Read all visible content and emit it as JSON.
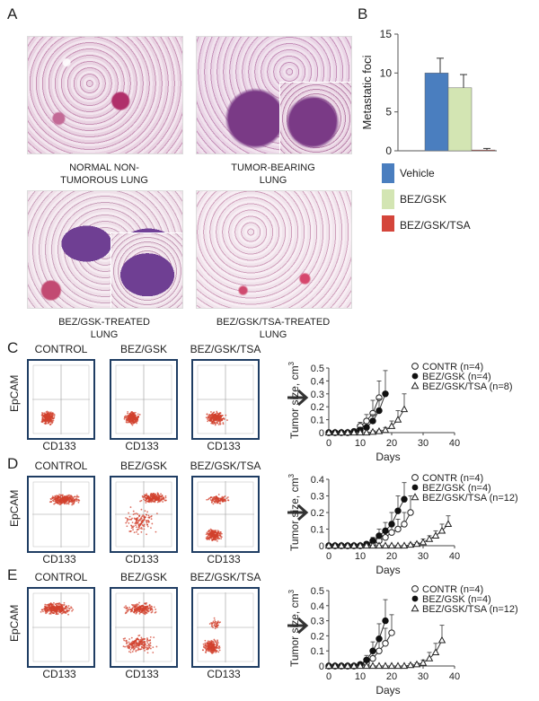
{
  "panelA": {
    "letter": "A",
    "captions": {
      "normal_l1": "NORMAL NON-",
      "normal_l2": "TUMOROUS LUNG",
      "tumor_l1": "TUMOR-BEARING",
      "tumor_l2": "LUNG",
      "gsk_l1": "BEZ/GSK-TREATED",
      "gsk_l2": "LUNG",
      "tsa_l1": "BEZ/GSK/TSA-TREATED",
      "tsa_l2": "LUNG"
    }
  },
  "panelB": {
    "letter": "B"
  },
  "panelC": {
    "letter": "C",
    "flow_titles": [
      "CONTROL",
      "BEZ/GSK",
      "BEZ/GSK/TSA"
    ],
    "flow_ylabel": "EpCAM",
    "flow_xlabel": "CD133"
  },
  "panelD": {
    "letter": "D",
    "flow_titles": [
      "CONTROL",
      "BEZ/GSK",
      "BEZ/GSK/TSA"
    ],
    "flow_ylabel": "EpCAM",
    "flow_xlabel": "CD133"
  },
  "panelE": {
    "letter": "E",
    "flow_titles": [
      "CONTROL",
      "BEZ/GSK",
      "BEZ/GSK/TSA"
    ],
    "flow_ylabel": "EpCAM",
    "flow_xlabel": "CD133"
  },
  "colors": {
    "vehicle": "#4a7ebf",
    "bez_gsk": "#d3e5b3",
    "bez_gsk_tsa": "#d4453b",
    "flow_border": "#1f3d63",
    "flow_dots": "#d2412e"
  },
  "chart_data": [
    {
      "id": "B",
      "type": "bar",
      "categories": [
        "Vehicle",
        "BEZ/GSK",
        "BEZ/GSK/TSA"
      ],
      "values": [
        10,
        8.1,
        0.1
      ],
      "errors": [
        1.9,
        1.7,
        0.2
      ],
      "ylabel": "Metastatic foci",
      "yticks": [
        0,
        5,
        10,
        15
      ],
      "ylim": [
        0,
        15
      ],
      "legend": [
        "Vehicle",
        "BEZ/GSK",
        "BEZ/GSK/TSA"
      ]
    },
    {
      "id": "C",
      "type": "line",
      "xlabel": "Days",
      "ylabel_main": "Tumor size, cm",
      "ylabel_sup": "3",
      "xlim": [
        0,
        40
      ],
      "xticks": [
        0,
        10,
        20,
        30,
        40
      ],
      "ylim": [
        0,
        0.5
      ],
      "yticks": [
        "0",
        "0.1",
        "0.2",
        "0.3",
        "0.4",
        "0.5"
      ],
      "series": [
        {
          "name": "CONTR (n=4)",
          "marker": "open-circle",
          "x": [
            0,
            2,
            4,
            6,
            8,
            10,
            12,
            14,
            16
          ],
          "y": [
            0,
            0,
            0,
            0,
            0.01,
            0.05,
            0.09,
            0.15,
            0.27
          ],
          "err": [
            0,
            0,
            0,
            0,
            0.01,
            0.03,
            0.05,
            0.1,
            0.13
          ]
        },
        {
          "name": "BEZ/GSK (n=4)",
          "marker": "filled-circle",
          "x": [
            0,
            2,
            4,
            6,
            8,
            10,
            12,
            14,
            16,
            18
          ],
          "y": [
            0,
            0,
            0,
            0,
            0.005,
            0.02,
            0.04,
            0.09,
            0.17,
            0.3
          ],
          "err": [
            0,
            0,
            0,
            0,
            0.01,
            0.02,
            0.03,
            0.05,
            0.09,
            0.18
          ]
        },
        {
          "name": "BEZ/GSK/TSA (n=8)",
          "marker": "open-triangle",
          "x": [
            0,
            2,
            4,
            6,
            8,
            10,
            12,
            14,
            16,
            18,
            20,
            22,
            24
          ],
          "y": [
            0,
            0,
            0,
            0,
            0,
            0,
            0,
            0.005,
            0.01,
            0.02,
            0.05,
            0.1,
            0.18
          ],
          "err": [
            0,
            0,
            0,
            0,
            0,
            0,
            0,
            0.01,
            0.01,
            0.02,
            0.04,
            0.07,
            0.12
          ]
        }
      ]
    },
    {
      "id": "D",
      "type": "line",
      "xlabel": "Days",
      "ylabel_main": "Tumor size, cm",
      "ylabel_sup": "3",
      "xlim": [
        0,
        40
      ],
      "xticks": [
        0,
        10,
        20,
        30,
        40
      ],
      "ylim": [
        0,
        0.4
      ],
      "yticks": [
        "0",
        "0.1",
        "0.2",
        "0.3",
        "0.4"
      ],
      "series": [
        {
          "name": "CONTR (n=4)",
          "marker": "open-circle",
          "x": [
            0,
            2,
            4,
            6,
            8,
            10,
            12,
            14,
            16,
            18,
            20,
            22,
            24,
            26
          ],
          "y": [
            0,
            0,
            0,
            0,
            0,
            0,
            0.005,
            0.01,
            0.03,
            0.05,
            0.08,
            0.1,
            0.13,
            0.2
          ],
          "err": [
            0,
            0,
            0,
            0,
            0,
            0,
            0.01,
            0.01,
            0.02,
            0.03,
            0.05,
            0.06,
            0.07,
            0.1
          ]
        },
        {
          "name": "BEZ/GSK (n=4)",
          "marker": "filled-circle",
          "x": [
            0,
            2,
            4,
            6,
            8,
            10,
            12,
            14,
            16,
            18,
            20,
            22,
            24
          ],
          "y": [
            0,
            0,
            0,
            0,
            0,
            0,
            0.01,
            0.03,
            0.06,
            0.09,
            0.13,
            0.21,
            0.28
          ],
          "err": [
            0,
            0,
            0,
            0,
            0,
            0,
            0.01,
            0.02,
            0.04,
            0.05,
            0.07,
            0.09,
            0.1
          ]
        },
        {
          "name": "BEZ/GSK/TSA (n=12)",
          "marker": "open-triangle",
          "x": [
            0,
            2,
            4,
            6,
            8,
            10,
            12,
            14,
            16,
            18,
            20,
            22,
            24,
            26,
            28,
            30,
            32,
            34,
            36,
            38
          ],
          "y": [
            0,
            0,
            0,
            0,
            0,
            0,
            0,
            0,
            0,
            0,
            0,
            0,
            0,
            0.005,
            0.01,
            0.02,
            0.04,
            0.06,
            0.09,
            0.13
          ],
          "err": [
            0,
            0,
            0,
            0,
            0,
            0,
            0,
            0,
            0,
            0,
            0,
            0,
            0,
            0.01,
            0.01,
            0.02,
            0.02,
            0.03,
            0.04,
            0.05
          ]
        }
      ]
    },
    {
      "id": "E",
      "type": "line",
      "xlabel": "Days",
      "ylabel_main": "Tumor size, cm",
      "ylabel_sup": "3",
      "xlim": [
        0,
        40
      ],
      "xticks": [
        0,
        10,
        20,
        30,
        40
      ],
      "ylim": [
        0,
        0.5
      ],
      "yticks": [
        "0",
        "0.1",
        "0.2",
        "0.3",
        "0.4",
        "0.5"
      ],
      "series": [
        {
          "name": "CONTR (n=4)",
          "marker": "open-circle",
          "x": [
            0,
            2,
            4,
            6,
            8,
            10,
            12,
            14,
            16,
            18,
            20
          ],
          "y": [
            0,
            0,
            0,
            0,
            0,
            0.01,
            0.02,
            0.05,
            0.1,
            0.15,
            0.22
          ],
          "err": [
            0,
            0,
            0,
            0,
            0,
            0.01,
            0.02,
            0.04,
            0.07,
            0.1,
            0.12
          ]
        },
        {
          "name": "BEZ/GSK (n=4)",
          "marker": "filled-circle",
          "x": [
            0,
            2,
            4,
            6,
            8,
            10,
            12,
            14,
            16,
            18
          ],
          "y": [
            0,
            0,
            0,
            0,
            0,
            0.01,
            0.04,
            0.1,
            0.18,
            0.3
          ],
          "err": [
            0,
            0,
            0,
            0,
            0,
            0.01,
            0.03,
            0.06,
            0.1,
            0.14
          ]
        },
        {
          "name": "BEZ/GSK/TSA (n=12)",
          "marker": "open-triangle",
          "x": [
            0,
            2,
            4,
            6,
            8,
            10,
            12,
            14,
            16,
            18,
            20,
            22,
            24,
            26,
            28,
            30,
            32,
            34,
            36
          ],
          "y": [
            0,
            0,
            0,
            0,
            0,
            0,
            0,
            0,
            0,
            0,
            0,
            0,
            0,
            0.005,
            0.01,
            0.02,
            0.05,
            0.09,
            0.17
          ],
          "err": [
            0,
            0,
            0,
            0,
            0,
            0,
            0,
            0,
            0,
            0,
            0,
            0,
            0,
            0.01,
            0.01,
            0.02,
            0.04,
            0.06,
            0.1
          ]
        }
      ]
    }
  ]
}
